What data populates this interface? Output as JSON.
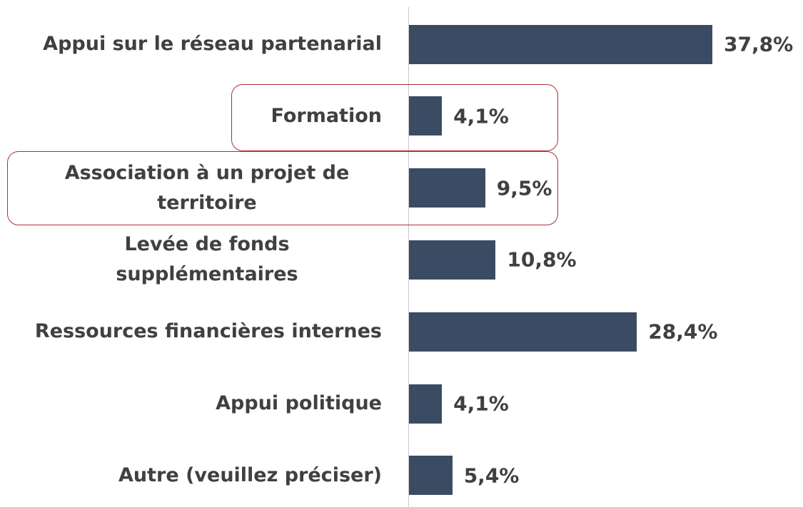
{
  "chart_data": {
    "type": "bar",
    "orientation": "horizontal",
    "categories": [
      "Appui sur le réseau partenarial",
      "Formation",
      "Association à un projet de territoire",
      "Levée de fonds supplémentaires",
      "Ressources financières internes",
      "Appui politique",
      "Autre (veuillez préciser)"
    ],
    "values": [
      37.8,
      4.1,
      9.5,
      10.8,
      28.4,
      4.1,
      5.4
    ],
    "value_labels": [
      "37,8%",
      "4,1%",
      "9,5%",
      "10,8%",
      "28,4%",
      "4,1%",
      "5,4%"
    ],
    "color": "#3a4c63"
  }
}
